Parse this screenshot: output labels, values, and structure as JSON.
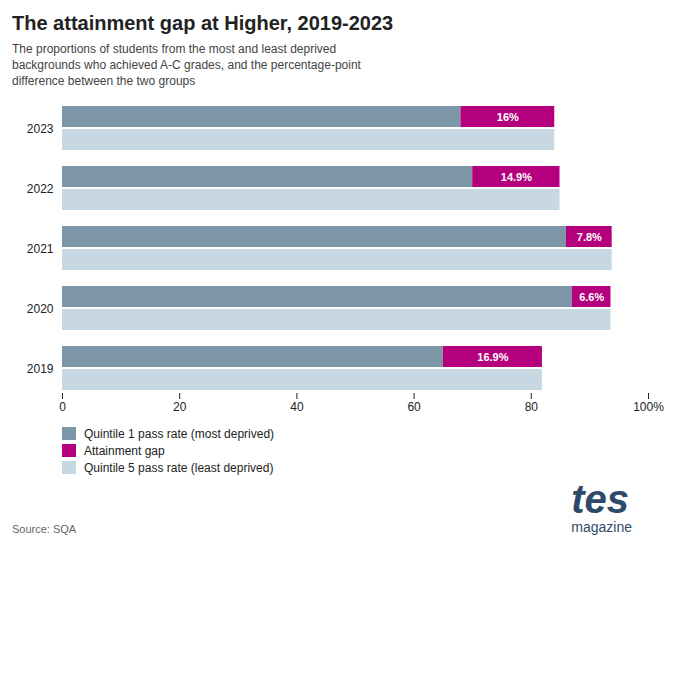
{
  "chart_data": {
    "type": "bar",
    "orientation": "horizontal",
    "title": "The attainment gap at Higher, 2019-2023",
    "subtitle": "The proportions of students from the most and least deprived\nbackgrounds who achieved A-C grades, and the percentage-point\ndifference between the two groups",
    "categories": [
      "2023",
      "2022",
      "2021",
      "2020",
      "2019"
    ],
    "series": [
      {
        "name": "Quintile 1 pass rate (most deprived)",
        "color": "#7d96a8",
        "values": [
          68.0,
          70.0,
          86.0,
          87.0,
          65.0
        ]
      },
      {
        "name": "Attainment gap",
        "color": "#b5007e",
        "stacked": true,
        "data_labels": true,
        "values": [
          16.0,
          14.9,
          7.8,
          6.6,
          16.9
        ],
        "value_labels": [
          "16%",
          "14.9%",
          "7.8%",
          "6.6%",
          "16.9%"
        ]
      },
      {
        "name": "Quintile 5 pass rate (least deprived)",
        "color": "#c8d8e2",
        "values": [
          84.0,
          84.9,
          93.8,
          93.6,
          81.9
        ]
      }
    ],
    "xlim": [
      0,
      100
    ],
    "xticks": [
      0,
      20,
      40,
      60,
      80,
      {
        "value": 100,
        "label": "100%"
      }
    ],
    "grid": false,
    "legend": "bottom",
    "source": "Source: SQA",
    "annotations": [
      {
        "text": "tes",
        "color": "#2e4a6b"
      },
      {
        "text": "magazine",
        "color": "#2e4a6b"
      }
    ]
  }
}
